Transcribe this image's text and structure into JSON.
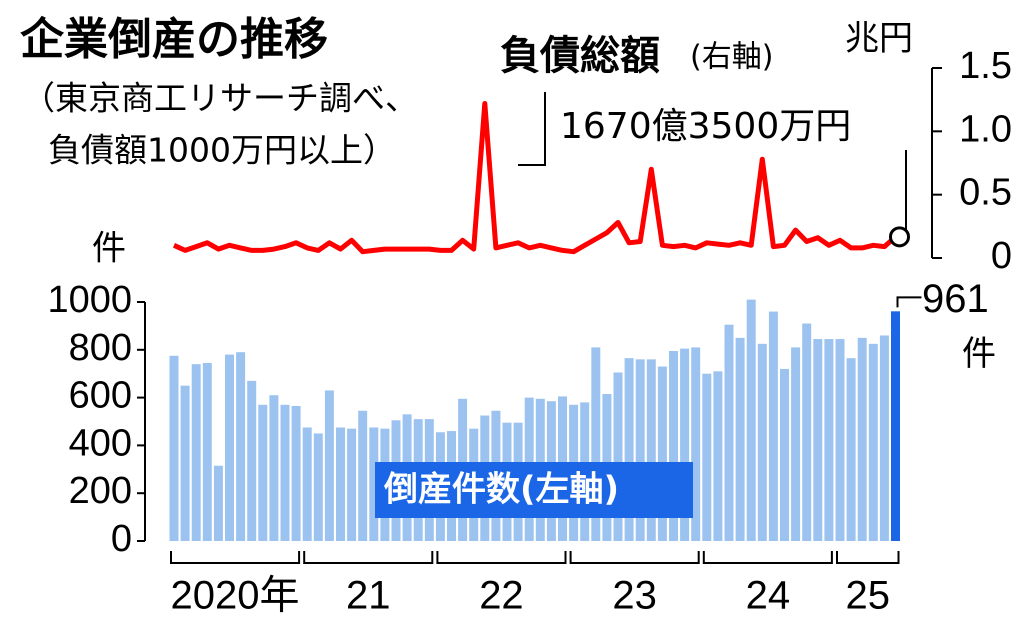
{
  "chart_data": [
    {
      "type": "line",
      "name": "負債総額",
      "axis_note": "(右軸)",
      "y_unit": "兆円",
      "color": "#ff0000",
      "annotation": "1670億3500万円",
      "values": [
        0.1,
        0.06,
        0.09,
        0.12,
        0.07,
        0.1,
        0.08,
        0.06,
        0.06,
        0.07,
        0.09,
        0.12,
        0.08,
        0.06,
        0.12,
        0.07,
        0.14,
        0.05,
        0.06,
        0.07,
        0.07,
        0.07,
        0.07,
        0.07,
        0.06,
        0.06,
        0.14,
        0.07,
        1.22,
        0.08,
        0.1,
        0.12,
        0.08,
        0.1,
        0.08,
        0.06,
        0.05,
        0.1,
        0.15,
        0.2,
        0.28,
        0.12,
        0.13,
        0.7,
        0.1,
        0.09,
        0.1,
        0.08,
        0.12,
        0.11,
        0.1,
        0.12,
        0.1,
        0.78,
        0.09,
        0.1,
        0.22,
        0.13,
        0.16,
        0.1,
        0.14,
        0.08,
        0.08,
        0.1,
        0.09,
        0.167
      ],
      "ylim": [
        0,
        1.5
      ],
      "yticks": [
        0,
        0.5,
        {
          "value": 1,
          "label": "1.0"
        },
        1.5
      ]
    },
    {
      "type": "bar",
      "title": "企業倒産の推移",
      "subtitle": [
        "（東京商工リサーチ調べ、",
        "負債額1000万円以上）"
      ],
      "name": "倒産件数(左軸)",
      "y_unit": "件",
      "color": "#9cc3f0",
      "highlight_color": "#1a66e6",
      "highlight_last": true,
      "categories": [
        "2020年",
        null,
        null,
        null,
        null,
        null,
        null,
        null,
        null,
        null,
        null,
        null,
        "21",
        null,
        null,
        null,
        null,
        null,
        null,
        null,
        null,
        null,
        null,
        null,
        "22",
        null,
        null,
        null,
        null,
        null,
        null,
        null,
        null,
        null,
        null,
        null,
        "23",
        null,
        null,
        null,
        null,
        null,
        null,
        null,
        null,
        null,
        null,
        null,
        "24",
        null,
        null,
        null,
        null,
        null,
        null,
        null,
        null,
        null,
        null,
        null,
        "25",
        null,
        null,
        null,
        null,
        null
      ],
      "values": [
        775,
        650,
        740,
        745,
        315,
        780,
        790,
        670,
        570,
        610,
        570,
        565,
        475,
        450,
        630,
        475,
        470,
        545,
        475,
        470,
        505,
        530,
        510,
        510,
        455,
        460,
        595,
        470,
        525,
        545,
        495,
        495,
        600,
        595,
        585,
        605,
        570,
        580,
        810,
        615,
        705,
        765,
        760,
        760,
        730,
        795,
        805,
        810,
        700,
        710,
        905,
        850,
        1010,
        825,
        960,
        720,
        810,
        910,
        845,
        845,
        845,
        765,
        850,
        825,
        860,
        961
      ],
      "ylim": [
        0,
        1000
      ],
      "yticks": [
        0,
        200,
        400,
        600,
        800,
        1000
      ]
    }
  ]
}
